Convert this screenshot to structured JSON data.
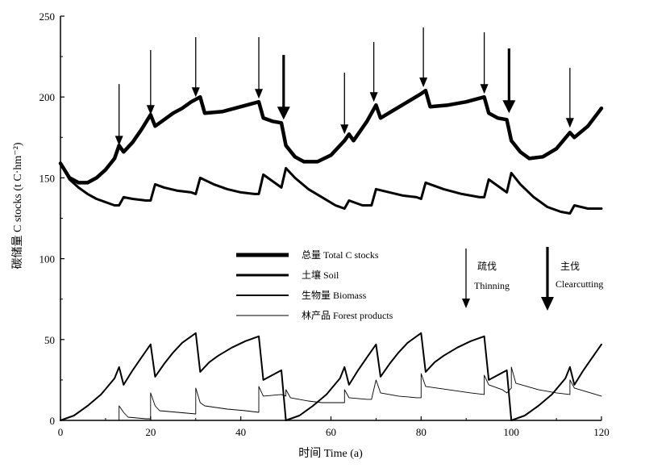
{
  "chart_data": {
    "type": "line",
    "xlabel": "时间  Time (a)",
    "ylabel": "碳储量 C stocks (t C·hm⁻²)",
    "xlim": [
      0,
      120
    ],
    "ylim": [
      0,
      250
    ],
    "xticks": [
      0,
      20,
      40,
      60,
      80,
      100,
      120
    ],
    "yticks": [
      0,
      50,
      100,
      150,
      200,
      250
    ],
    "grid": false,
    "legend_position": "center",
    "series": [
      {
        "name": "总量  Total C stocks",
        "style": "extra-thick",
        "points": [
          [
            0,
            159
          ],
          [
            2,
            150
          ],
          [
            4,
            147
          ],
          [
            6,
            147
          ],
          [
            8,
            150
          ],
          [
            10,
            155
          ],
          [
            12,
            162
          ],
          [
            13,
            170
          ],
          [
            14,
            166
          ],
          [
            16,
            172
          ],
          [
            18,
            180
          ],
          [
            20,
            189
          ],
          [
            21,
            182
          ],
          [
            23,
            186
          ],
          [
            25,
            190
          ],
          [
            27,
            193
          ],
          [
            29,
            197
          ],
          [
            31,
            200
          ],
          [
            32,
            190
          ],
          [
            36,
            191
          ],
          [
            40,
            194
          ],
          [
            44,
            197
          ],
          [
            45,
            187
          ],
          [
            47,
            185
          ],
          [
            49,
            184
          ],
          [
            50,
            170
          ],
          [
            52,
            163
          ],
          [
            54,
            160
          ],
          [
            57,
            160
          ],
          [
            60,
            164
          ],
          [
            63,
            173
          ],
          [
            64,
            177
          ],
          [
            65,
            173
          ],
          [
            68,
            185
          ],
          [
            70,
            195
          ],
          [
            71,
            187
          ],
          [
            74,
            192
          ],
          [
            77,
            197
          ],
          [
            80,
            202
          ],
          [
            81,
            204
          ],
          [
            82,
            194
          ],
          [
            86,
            195
          ],
          [
            90,
            197
          ],
          [
            94,
            200
          ],
          [
            95,
            190
          ],
          [
            97,
            187
          ],
          [
            99,
            186
          ],
          [
            100,
            173
          ],
          [
            102,
            166
          ],
          [
            104,
            162
          ],
          [
            107,
            163
          ],
          [
            110,
            168
          ],
          [
            113,
            178
          ],
          [
            114,
            175
          ],
          [
            117,
            182
          ],
          [
            120,
            193
          ]
        ]
      },
      {
        "name": "土壤  Soil",
        "style": "thick",
        "points": [
          [
            0,
            159
          ],
          [
            2,
            149
          ],
          [
            4,
            144
          ],
          [
            6,
            140
          ],
          [
            8,
            137
          ],
          [
            10,
            135
          ],
          [
            12,
            133
          ],
          [
            13,
            133
          ],
          [
            14,
            138
          ],
          [
            16,
            137
          ],
          [
            19,
            136
          ],
          [
            20,
            136
          ],
          [
            21,
            146
          ],
          [
            23,
            144
          ],
          [
            26,
            142
          ],
          [
            29,
            141
          ],
          [
            30,
            140
          ],
          [
            31,
            150
          ],
          [
            34,
            146
          ],
          [
            37,
            143
          ],
          [
            40,
            141
          ],
          [
            43,
            140
          ],
          [
            44,
            140
          ],
          [
            45,
            152
          ],
          [
            47,
            148
          ],
          [
            49,
            144
          ],
          [
            50,
            156
          ],
          [
            52,
            150
          ],
          [
            55,
            143
          ],
          [
            58,
            138
          ],
          [
            61,
            133
          ],
          [
            63,
            131
          ],
          [
            64,
            136
          ],
          [
            67,
            133
          ],
          [
            69,
            133
          ],
          [
            70,
            143
          ],
          [
            73,
            141
          ],
          [
            76,
            139
          ],
          [
            79,
            138
          ],
          [
            80,
            137
          ],
          [
            81,
            147
          ],
          [
            85,
            143
          ],
          [
            89,
            140
          ],
          [
            93,
            138
          ],
          [
            94,
            138
          ],
          [
            95,
            149
          ],
          [
            97,
            145
          ],
          [
            99,
            141
          ],
          [
            100,
            153
          ],
          [
            102,
            146
          ],
          [
            105,
            138
          ],
          [
            108,
            132
          ],
          [
            111,
            129
          ],
          [
            113,
            128
          ],
          [
            114,
            133
          ],
          [
            117,
            131
          ],
          [
            120,
            131
          ]
        ]
      },
      {
        "name": "生物量  Biomass",
        "style": "medium",
        "points": [
          [
            0,
            0
          ],
          [
            3,
            3
          ],
          [
            6,
            9
          ],
          [
            9,
            16
          ],
          [
            12,
            26
          ],
          [
            13,
            33
          ],
          [
            14,
            22
          ],
          [
            16,
            31
          ],
          [
            18,
            39
          ],
          [
            20,
            47
          ],
          [
            21,
            27
          ],
          [
            23,
            35
          ],
          [
            25,
            42
          ],
          [
            27,
            48
          ],
          [
            29,
            52
          ],
          [
            30,
            54
          ],
          [
            31,
            30
          ],
          [
            33,
            36
          ],
          [
            35,
            40
          ],
          [
            38,
            45
          ],
          [
            41,
            49
          ],
          [
            44,
            52
          ],
          [
            45,
            25
          ],
          [
            47,
            28
          ],
          [
            49,
            31
          ],
          [
            50,
            0
          ],
          [
            53,
            3
          ],
          [
            56,
            9
          ],
          [
            59,
            16
          ],
          [
            62,
            26
          ],
          [
            63,
            33
          ],
          [
            64,
            22
          ],
          [
            66,
            31
          ],
          [
            68,
            39
          ],
          [
            70,
            47
          ],
          [
            71,
            27
          ],
          [
            73,
            35
          ],
          [
            75,
            42
          ],
          [
            77,
            48
          ],
          [
            79,
            52
          ],
          [
            80,
            54
          ],
          [
            81,
            30
          ],
          [
            83,
            36
          ],
          [
            85,
            40
          ],
          [
            88,
            45
          ],
          [
            91,
            49
          ],
          [
            94,
            52
          ],
          [
            95,
            25
          ],
          [
            97,
            28
          ],
          [
            99,
            31
          ],
          [
            100,
            0
          ],
          [
            103,
            3
          ],
          [
            106,
            9
          ],
          [
            109,
            16
          ],
          [
            112,
            26
          ],
          [
            113,
            33
          ],
          [
            114,
            22
          ],
          [
            116,
            31
          ],
          [
            118,
            39
          ],
          [
            120,
            47
          ]
        ]
      },
      {
        "name": "林产品  Forest products",
        "style": "thin",
        "points": [
          [
            13,
            0
          ],
          [
            13,
            9
          ],
          [
            14,
            5
          ],
          [
            15,
            2
          ],
          [
            19,
            1
          ],
          [
            20,
            1
          ],
          [
            20,
            17
          ],
          [
            21,
            9
          ],
          [
            22,
            6
          ],
          [
            26,
            5
          ],
          [
            30,
            4
          ],
          [
            30,
            20
          ],
          [
            31,
            11
          ],
          [
            32,
            9
          ],
          [
            37,
            7
          ],
          [
            41,
            6
          ],
          [
            44,
            5
          ],
          [
            44,
            21
          ],
          [
            45,
            15
          ],
          [
            49,
            16
          ],
          [
            50,
            15
          ],
          [
            50,
            19
          ],
          [
            51,
            14
          ],
          [
            55,
            12
          ],
          [
            58,
            11
          ],
          [
            63,
            11
          ],
          [
            63,
            19
          ],
          [
            64,
            14
          ],
          [
            68,
            13
          ],
          [
            69,
            13
          ],
          [
            70,
            25
          ],
          [
            71,
            17
          ],
          [
            75,
            15
          ],
          [
            79,
            14
          ],
          [
            80,
            14
          ],
          [
            80,
            29
          ],
          [
            81,
            21
          ],
          [
            86,
            19
          ],
          [
            91,
            17
          ],
          [
            94,
            16
          ],
          [
            94,
            28
          ],
          [
            95,
            22
          ],
          [
            98,
            19
          ],
          [
            99,
            17
          ],
          [
            100,
            20
          ],
          [
            100,
            33
          ],
          [
            101,
            23
          ],
          [
            106,
            19
          ],
          [
            110,
            17
          ],
          [
            113,
            16
          ],
          [
            113,
            25
          ],
          [
            114,
            20
          ],
          [
            120,
            15
          ]
        ]
      }
    ],
    "annotations": [
      {
        "type": "arrow-down",
        "weight": "thin",
        "x": 13,
        "y_start": 208,
        "y_end": 170
      },
      {
        "type": "arrow-down",
        "weight": "thin",
        "x": 20,
        "y_start": 229,
        "y_end": 189
      },
      {
        "type": "arrow-down",
        "weight": "thin",
        "x": 30,
        "y_start": 237,
        "y_end": 200
      },
      {
        "type": "arrow-down",
        "weight": "thin",
        "x": 44,
        "y_start": 237,
        "y_end": 199
      },
      {
        "type": "arrow-down",
        "weight": "thick",
        "x": 49.5,
        "y_start": 226,
        "y_end": 186
      },
      {
        "type": "arrow-down",
        "weight": "thin",
        "x": 63,
        "y_start": 215,
        "y_end": 177
      },
      {
        "type": "arrow-down",
        "weight": "thin",
        "x": 69.5,
        "y_start": 234,
        "y_end": 197
      },
      {
        "type": "arrow-down",
        "weight": "thin",
        "x": 80.5,
        "y_start": 243,
        "y_end": 206
      },
      {
        "type": "arrow-down",
        "weight": "thin",
        "x": 94,
        "y_start": 240,
        "y_end": 202
      },
      {
        "type": "arrow-down",
        "weight": "thick",
        "x": 99.5,
        "y_start": 230,
        "y_end": 190
      },
      {
        "type": "arrow-down",
        "weight": "thin",
        "x": 113,
        "y_start": 218,
        "y_end": 181
      }
    ],
    "legend_keys": [
      {
        "label": "疏伐",
        "sublabel": "Thinning",
        "weight": "thin"
      },
      {
        "label": "主伐",
        "sublabel": "Clearcutting",
        "weight": "thick"
      }
    ]
  }
}
